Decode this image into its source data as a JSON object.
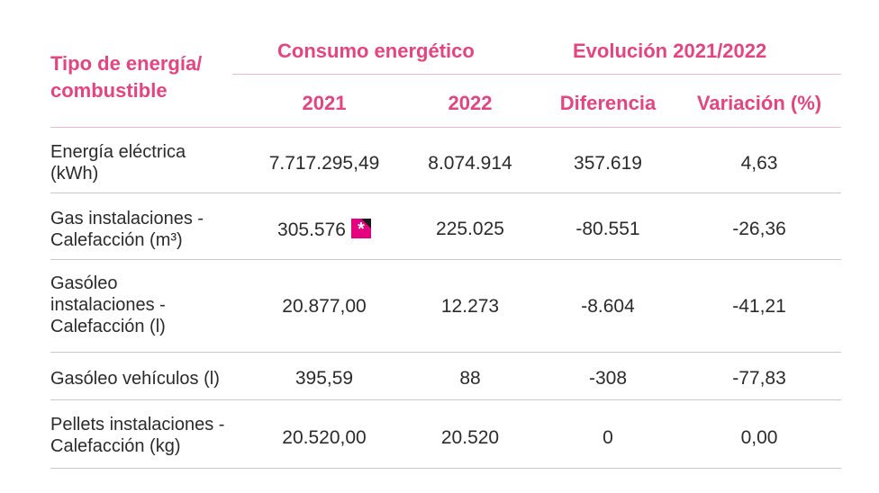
{
  "header": {
    "type_label_line1": "Tipo de energía/",
    "type_label_line2": "combustible",
    "consumo": "Consumo energético",
    "evolucion": "Evolución 2021/2022",
    "col_2021": "2021",
    "col_2022": "2022",
    "col_diferencia": "Diferencia",
    "col_variacion": "Variación (%)"
  },
  "rows": [
    {
      "label_lines": [
        "Energía eléctrica",
        "(kWh)"
      ],
      "v2021": "7.717.295,49",
      "v2022": "8.074.914",
      "diferencia": "357.619",
      "variacion": "4,63"
    },
    {
      "label_lines": [
        "Gas instalaciones -",
        "Calefacción (m³)"
      ],
      "v2021": "305.576",
      "v2022": "225.025",
      "diferencia": "-80.551",
      "variacion": "-26,36"
    },
    {
      "label_lines": [
        "Gasóleo",
        "instalaciones -",
        "Calefacción (l)"
      ],
      "v2021": "20.877,00",
      "v2022": "12.273",
      "diferencia": "-8.604",
      "variacion": "-41,21"
    },
    {
      "label_lines": [
        "Gasóleo vehículos (l)"
      ],
      "v2021": "395,59",
      "v2022": "88",
      "diferencia": "-308",
      "variacion": "-77,83"
    },
    {
      "label_lines": [
        "Pellets instalaciones -",
        "Calefacción (kg)"
      ],
      "v2021": "20.520,00",
      "v2022": "20.520",
      "diferencia": "0",
      "variacion": "0,00"
    }
  ],
  "badge": {
    "symbol": "*",
    "icon": "asterisk-icon",
    "color": "#e4007f"
  },
  "colors": {
    "accent": "#e4447f",
    "text": "#2b2b2b",
    "divider": "#c9c9c9"
  }
}
